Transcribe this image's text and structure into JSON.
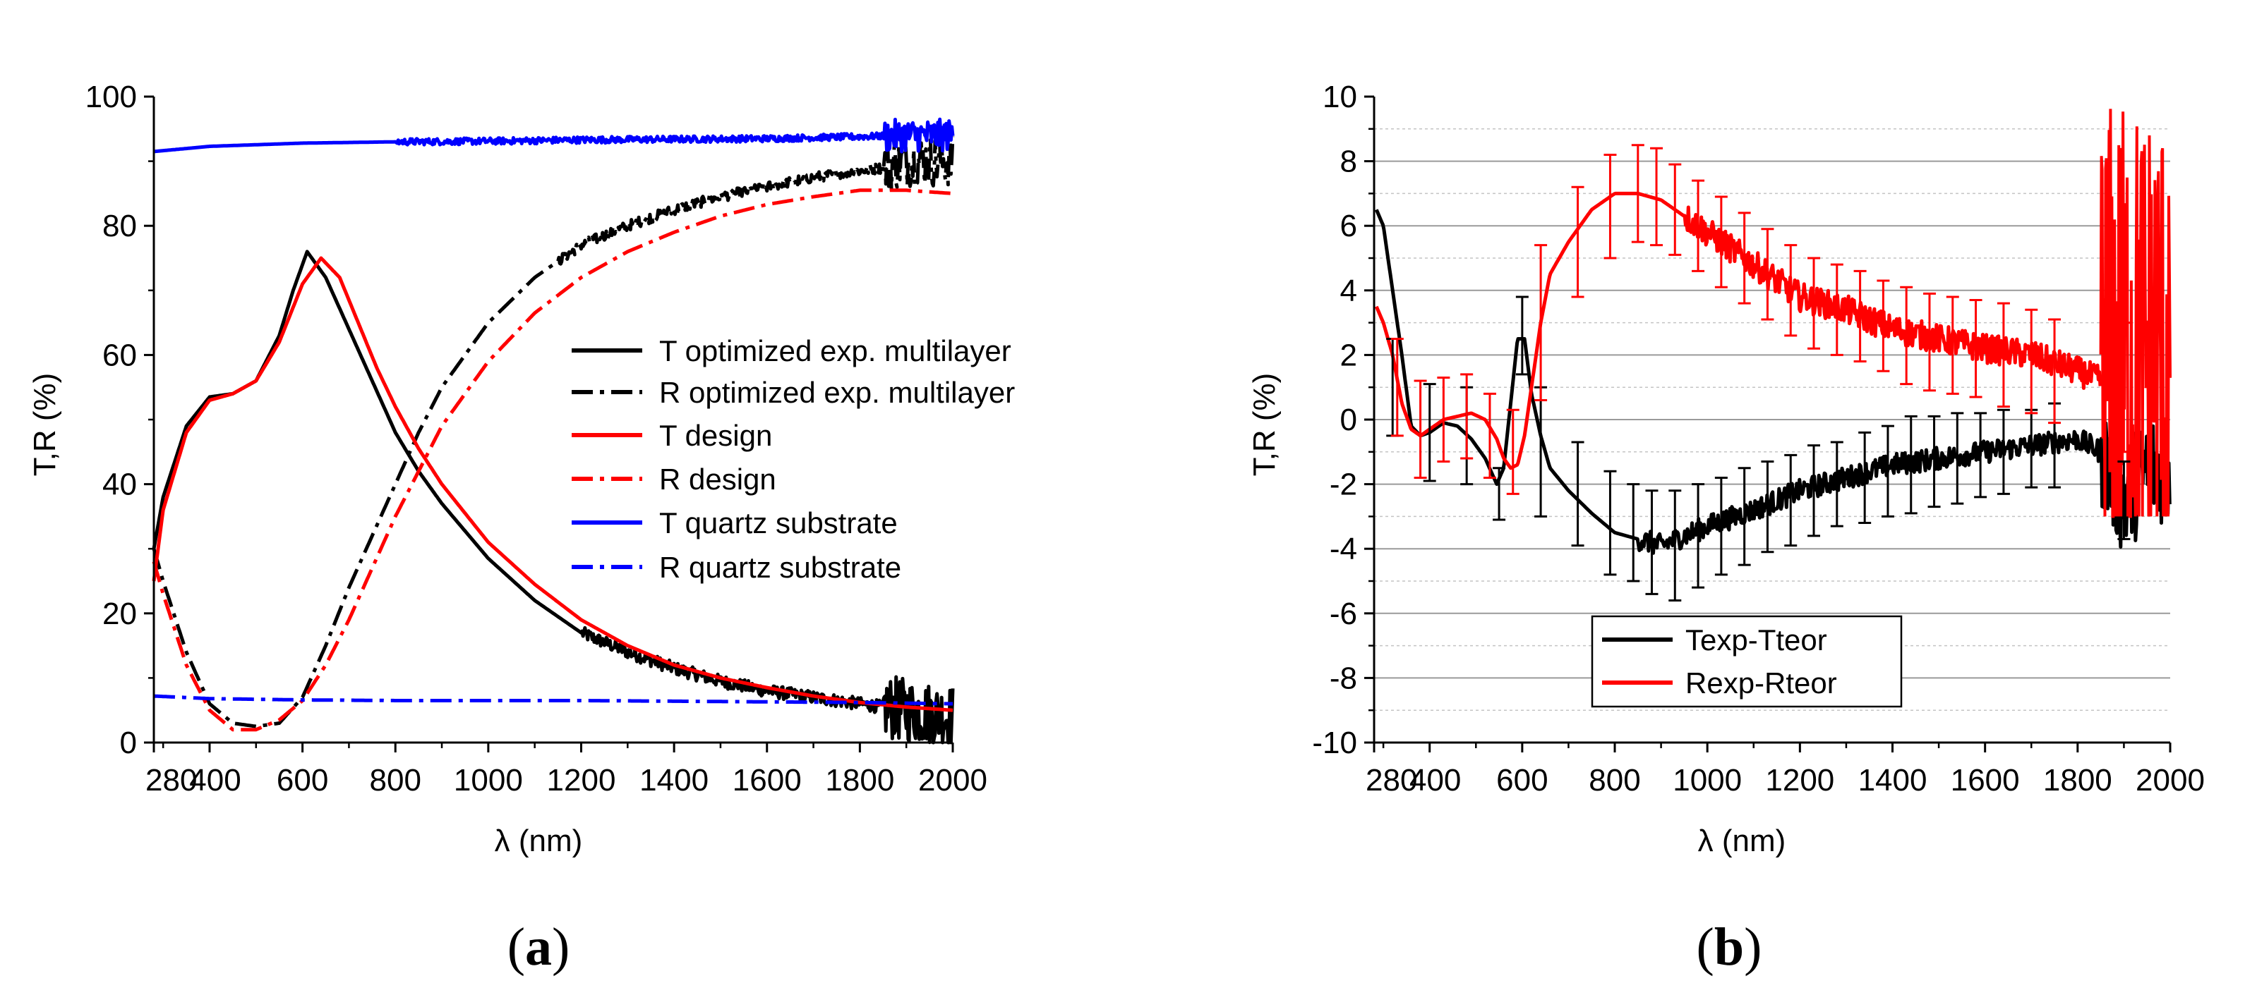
{
  "panel_labels": {
    "a": {
      "open": "(",
      "letter": "a",
      "close": ")"
    },
    "b": {
      "open": "(",
      "letter": "b",
      "close": ")"
    }
  },
  "chart_data": [
    {
      "id": "a",
      "type": "line",
      "xlabel": "λ (nm)",
      "ylabel": "T,R (%)",
      "xlim": [
        280,
        2000
      ],
      "ylim": [
        0,
        100
      ],
      "xticks": [
        "280",
        "400",
        "600",
        "800",
        "1000",
        "1200",
        "1400",
        "1600",
        "1800",
        "2000"
      ],
      "xtick_values": [
        280,
        400,
        600,
        800,
        1000,
        1200,
        1400,
        1600,
        1800,
        2000
      ],
      "yticks": [
        "0",
        "20",
        "40",
        "60",
        "80",
        "100"
      ],
      "ytick_values": [
        0,
        20,
        40,
        60,
        80,
        100
      ],
      "grid": false,
      "legend_position": "center-right",
      "series": [
        {
          "name": "T optimized exp. multilayer",
          "color": "#000000",
          "style": "solid",
          "noise_start": 1200,
          "noise_amp": 1.0,
          "x": [
            280,
            300,
            350,
            400,
            450,
            500,
            550,
            580,
            610,
            650,
            700,
            750,
            800,
            850,
            900,
            1000,
            1100,
            1200,
            1300,
            1400,
            1500,
            1600,
            1700,
            1800,
            1900,
            2000
          ],
          "y": [
            30,
            38,
            49,
            53.5,
            54,
            56,
            63,
            70,
            76,
            72,
            64,
            56,
            48,
            42,
            37,
            28.5,
            22,
            17,
            14,
            11.5,
            9.5,
            8,
            7,
            6,
            5,
            4
          ]
        },
        {
          "name": "R optimized exp. multilayer",
          "color": "#000000",
          "style": "dashdot",
          "noise_start": 1150,
          "noise_amp": 0.8,
          "x": [
            280,
            300,
            350,
            400,
            450,
            500,
            550,
            600,
            650,
            700,
            750,
            800,
            850,
            900,
            1000,
            1100,
            1200,
            1300,
            1400,
            1500,
            1600,
            1700,
            1800,
            1850,
            1900,
            2000
          ],
          "y": [
            30,
            25,
            14,
            6,
            3,
            2.5,
            3,
            7,
            15,
            24,
            32,
            40,
            48,
            55,
            65,
            72,
            77,
            80,
            82.5,
            84.5,
            86,
            87.5,
            88.5,
            89,
            90,
            90
          ]
        },
        {
          "name": "T design",
          "color": "#ff0000",
          "style": "solid",
          "x": [
            280,
            300,
            350,
            400,
            450,
            500,
            550,
            600,
            640,
            680,
            720,
            760,
            800,
            850,
            900,
            1000,
            1100,
            1200,
            1300,
            1400,
            1500,
            1600,
            1700,
            1800,
            1900,
            2000
          ],
          "y": [
            25,
            36,
            48,
            53,
            54,
            56,
            62,
            71,
            75,
            72,
            65,
            58,
            52,
            45.5,
            40,
            31,
            24.5,
            19,
            15,
            12,
            10,
            8.5,
            7.2,
            6.2,
            5.5,
            5
          ]
        },
        {
          "name": "R design",
          "color": "#ff0000",
          "style": "dashdot",
          "x": [
            280,
            300,
            350,
            400,
            450,
            500,
            550,
            600,
            650,
            700,
            750,
            800,
            850,
            900,
            1000,
            1100,
            1200,
            1300,
            1400,
            1500,
            1600,
            1700,
            1800,
            1900,
            2000
          ],
          "y": [
            28,
            23,
            12,
            5,
            2,
            2,
            3.5,
            6.5,
            12,
            19,
            27,
            35,
            42,
            49,
            59,
            66.5,
            72,
            76,
            79,
            81.5,
            83.3,
            84.5,
            85.5,
            85.5,
            85
          ]
        },
        {
          "name": "T quartz substrate",
          "color": "#0000ff",
          "style": "solid",
          "noise_start": 800,
          "noise_amp": 0.5,
          "x": [
            280,
            400,
            600,
            800,
            1000,
            1200,
            1400,
            1600,
            1800,
            1900,
            2000
          ],
          "y": [
            91.5,
            92.3,
            92.8,
            93,
            93.1,
            93.3,
            93.4,
            93.5,
            93.8,
            94,
            94
          ]
        },
        {
          "name": "R quartz substrate",
          "color": "#0000ff",
          "style": "dashdot",
          "x": [
            280,
            400,
            600,
            800,
            1000,
            1200,
            1400,
            1600,
            1800,
            2000
          ],
          "y": [
            7.2,
            6.8,
            6.6,
            6.5,
            6.5,
            6.5,
            6.4,
            6.3,
            6.2,
            6.0
          ]
        }
      ]
    },
    {
      "id": "b",
      "type": "line",
      "xlabel": "λ (nm)",
      "ylabel": "T,R (%)",
      "xlim": [
        280,
        2000
      ],
      "ylim": [
        -10,
        10
      ],
      "xticks": [
        "280",
        "400",
        "600",
        "800",
        "1000",
        "1200",
        "1400",
        "1600",
        "1800",
        "2000"
      ],
      "xtick_values": [
        280,
        400,
        600,
        800,
        1000,
        1200,
        1400,
        1600,
        1800,
        2000
      ],
      "yticks": [
        "-10",
        "-8",
        "-6",
        "-4",
        "-2",
        "0",
        "2",
        "4",
        "6",
        "8",
        "10"
      ],
      "ytick_values": [
        -10,
        -8,
        -6,
        -4,
        -2,
        0,
        2,
        4,
        6,
        8,
        10
      ],
      "grid": true,
      "legend_position": "bottom-left",
      "series": [
        {
          "name": "Texp-Tteor",
          "color": "#000000",
          "style": "solid",
          "noise_start": 850,
          "noise_amp": 0.35,
          "x": [
            285,
            300,
            320,
            340,
            360,
            380,
            400,
            430,
            460,
            490,
            520,
            545,
            560,
            575,
            590,
            605,
            620,
            640,
            660,
            700,
            750,
            800,
            850,
            900,
            950,
            1000,
            1100,
            1200,
            1300,
            1400,
            1500,
            1600,
            1700,
            1800,
            1850,
            1900,
            1950,
            2000
          ],
          "y": [
            6.5,
            6,
            4,
            2,
            -0.2,
            -0.5,
            -0.4,
            -0.1,
            -0.2,
            -0.6,
            -1.2,
            -2,
            -1.5,
            0.5,
            2.5,
            2.5,
            0.8,
            -0.5,
            -1.5,
            -2.2,
            -2.9,
            -3.5,
            -3.7,
            -3.9,
            -3.6,
            -3.3,
            -2.8,
            -2.2,
            -1.8,
            -1.4,
            -1.2,
            -1.0,
            -0.8,
            -0.6,
            -1.0,
            -2.5,
            -1.5,
            -1.5
          ]
        },
        {
          "name": "Rexp-Rteor",
          "color": "#ff0000",
          "style": "solid",
          "noise_start": 950,
          "noise_amp": 0.45,
          "x": [
            285,
            300,
            320,
            340,
            360,
            380,
            400,
            430,
            460,
            490,
            520,
            545,
            560,
            575,
            590,
            605,
            620,
            640,
            660,
            700,
            750,
            800,
            850,
            900,
            950,
            1000,
            1100,
            1200,
            1300,
            1400,
            1500,
            1600,
            1700,
            1800,
            1850
          ],
          "y": [
            3.5,
            3,
            2,
            0.5,
            -0.3,
            -0.5,
            -0.3,
            0,
            0.1,
            0.2,
            0,
            -0.6,
            -1.2,
            -1.5,
            -1.4,
            -0.5,
            1,
            3,
            4.5,
            5.5,
            6.5,
            7,
            7,
            6.8,
            6.3,
            5.8,
            4.8,
            3.8,
            3.4,
            2.8,
            2.5,
            2.2,
            2,
            1.5,
            1.2
          ]
        }
      ],
      "error_bars": {
        "Texp-Tteor": {
          "x": [
            320,
            400,
            480,
            550,
            600,
            640,
            720,
            790,
            840,
            880,
            930,
            980,
            1030,
            1080,
            1130,
            1180,
            1230,
            1280,
            1340,
            1390,
            1440,
            1490,
            1540,
            1590,
            1640,
            1700,
            1750,
            1900
          ],
          "y": [
            1.0,
            -0.4,
            -0.5,
            -2.3,
            2.6,
            -1.0,
            -2.3,
            -3.2,
            -3.5,
            -3.8,
            -3.9,
            -3.6,
            -3.3,
            -3.0,
            -2.7,
            -2.5,
            -2.2,
            -2.0,
            -1.8,
            -1.6,
            -1.4,
            -1.3,
            -1.2,
            -1.1,
            -1.0,
            -0.9,
            -0.8,
            -2.5
          ],
          "err": [
            1.5,
            1.5,
            1.5,
            0.8,
            1.2,
            2.0,
            1.6,
            1.6,
            1.5,
            1.6,
            1.7,
            1.6,
            1.5,
            1.5,
            1.4,
            1.4,
            1.4,
            1.3,
            1.4,
            1.4,
            1.5,
            1.4,
            1.4,
            1.3,
            1.3,
            1.2,
            1.3,
            1.2
          ]
        },
        "Rexp-Rteor": {
          "x": [
            330,
            380,
            430,
            480,
            530,
            580,
            640,
            720,
            790,
            850,
            890,
            930,
            980,
            1030,
            1080,
            1130,
            1180,
            1230,
            1280,
            1330,
            1380,
            1430,
            1480,
            1530,
            1580,
            1640,
            1700,
            1750,
            1900
          ],
          "y": [
            1.0,
            -0.3,
            0,
            0.1,
            -0.5,
            -1.0,
            3.0,
            5.5,
            6.6,
            7.0,
            6.9,
            6.5,
            6.0,
            5.5,
            5.0,
            4.5,
            4.0,
            3.6,
            3.4,
            3.2,
            2.9,
            2.6,
            2.4,
            2.3,
            2.2,
            2.0,
            1.8,
            1.5,
            1.0
          ],
          "err": [
            1.5,
            1.5,
            1.3,
            1.3,
            1.3,
            1.3,
            2.4,
            1.7,
            1.6,
            1.5,
            1.5,
            1.4,
            1.4,
            1.4,
            1.4,
            1.4,
            1.4,
            1.4,
            1.4,
            1.4,
            1.4,
            1.5,
            1.5,
            1.5,
            1.5,
            1.6,
            1.6,
            1.6,
            2.0
          ]
        }
      }
    }
  ]
}
